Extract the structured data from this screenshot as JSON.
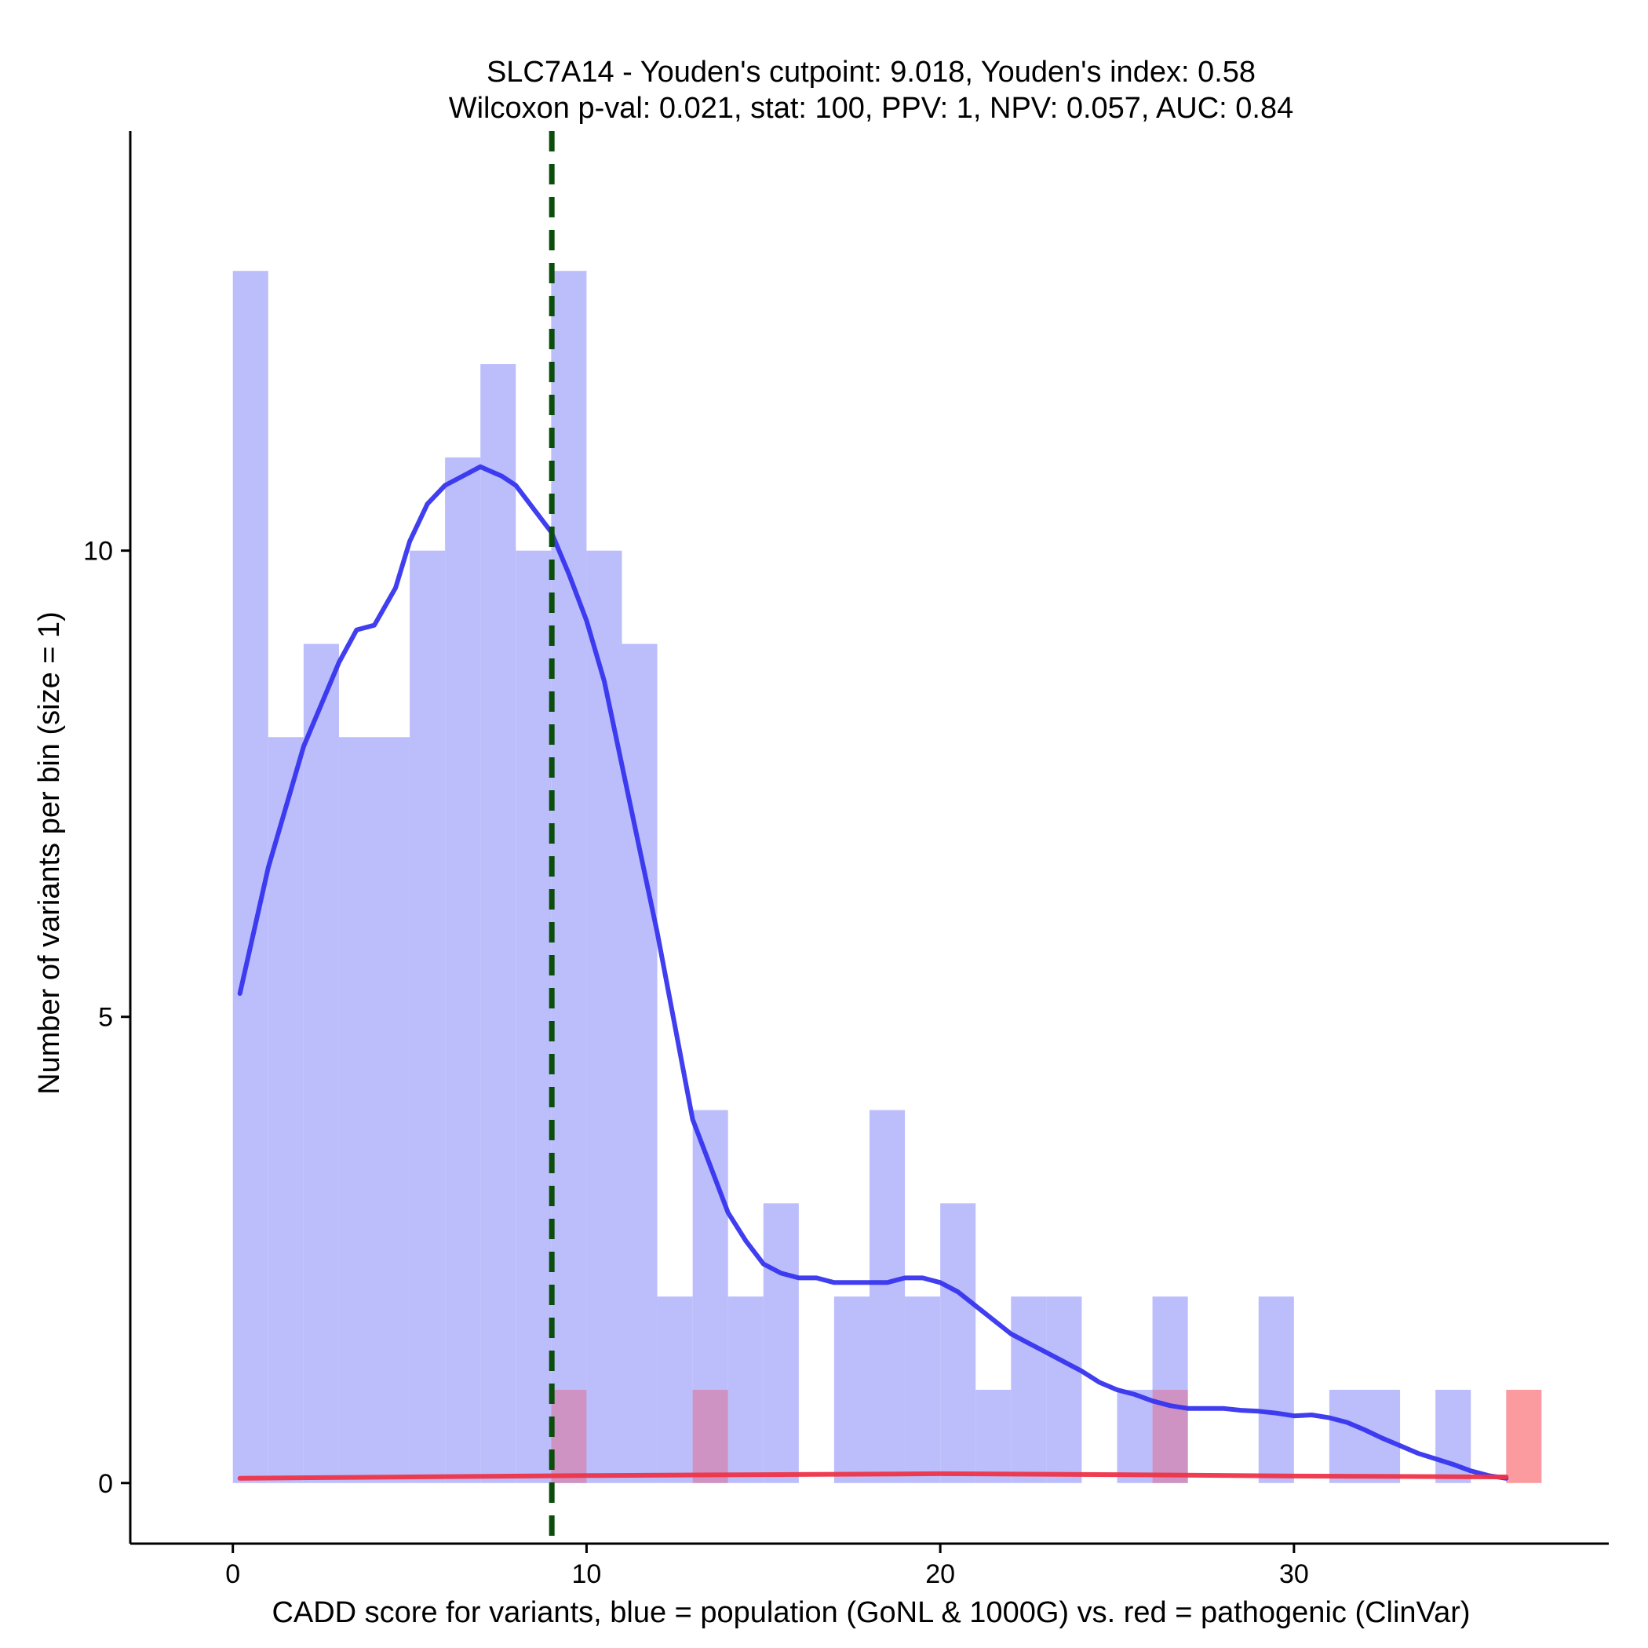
{
  "chart_data": {
    "type": "bar",
    "title": "SLC7A14 - Youden's cutpoint: 9.018, Youden's index: 0.58",
    "subtitle": "Wilcoxon p-val: 0.021, stat: 100, PPV: 1, NPV: 0.057, AUC: 0.84",
    "xlabel": "CADD score for variants, blue = population (GoNL & 1000G) vs. red = pathogenic (ClinVar)",
    "ylabel": "Number of variants per bin (size = 1)",
    "xlim": [
      -2.9,
      38.9
    ],
    "ylim": [
      -0.65,
      14.5
    ],
    "x_ticks": [
      0,
      10,
      20,
      30
    ],
    "x_tick_labels": [
      "0",
      "10",
      "20",
      "30"
    ],
    "y_ticks": [
      0,
      5,
      10
    ],
    "y_tick_labels": [
      "0",
      "5",
      "10"
    ],
    "cutpoint": 9.018,
    "colors": {
      "population_bars": "#bcbdfb",
      "pathogenic_bars": "#fc9b9f",
      "overlap_bars": "#cf93c3",
      "population_density": "#3634ee",
      "pathogenic_density": "#ee3448",
      "cutpoint_line": "#0b4d0b"
    },
    "series": [
      {
        "name": "population (GoNL & 1000G)",
        "bin_starts": [
          0,
          1,
          2,
          3,
          4,
          5,
          6,
          7,
          8,
          9,
          10,
          11,
          12,
          13,
          14,
          15,
          16,
          17,
          18,
          19,
          20,
          21,
          22,
          23,
          24,
          25,
          26,
          27,
          28,
          29,
          30,
          31,
          32,
          33,
          34,
          35
        ],
        "values": [
          13,
          8,
          9,
          8,
          8,
          10,
          11,
          12,
          10,
          13,
          10,
          9,
          2,
          4,
          2,
          3,
          0,
          2,
          4,
          2,
          3,
          1,
          2,
          2,
          0,
          1,
          2,
          0,
          0,
          2,
          0,
          1,
          1,
          0,
          1,
          0
        ]
      },
      {
        "name": "pathogenic (ClinVar)",
        "bin_starts": [
          9,
          13,
          26,
          36
        ],
        "values": [
          1,
          1,
          1,
          1
        ]
      }
    ],
    "density": [
      {
        "name": "population (GoNL & 1000G)",
        "x": [
          0.2,
          1,
          2,
          3,
          3.5,
          4,
          4.6,
          5,
          5.5,
          6,
          6.5,
          7,
          7.3,
          7.6,
          8,
          8.5,
          9,
          9.5,
          10,
          10.5,
          11,
          11.5,
          12,
          12.5,
          13,
          13.5,
          14,
          14.5,
          15,
          15.5,
          16,
          16.5,
          17,
          17.5,
          18,
          18.5,
          19,
          19.5,
          20,
          20.5,
          21,
          21.5,
          22,
          22.5,
          23,
          23.5,
          24,
          24.5,
          25,
          25.5,
          26,
          26.5,
          27,
          27.5,
          28,
          28.5,
          29,
          29.5,
          30,
          30.5,
          31,
          31.5,
          32,
          32.5,
          33,
          33.5,
          34,
          34.5,
          35,
          35.5,
          36
        ],
        "y": [
          5.25,
          6.6,
          7.9,
          8.8,
          9.15,
          9.2,
          9.6,
          10.1,
          10.5,
          10.7,
          10.8,
          10.9,
          10.85,
          10.8,
          10.7,
          10.45,
          10.2,
          9.75,
          9.25,
          8.6,
          7.7,
          6.8,
          5.9,
          4.9,
          3.9,
          3.4,
          2.9,
          2.6,
          2.35,
          2.25,
          2.2,
          2.2,
          2.15,
          2.15,
          2.15,
          2.15,
          2.2,
          2.2,
          2.15,
          2.05,
          1.9,
          1.75,
          1.6,
          1.5,
          1.4,
          1.3,
          1.2,
          1.08,
          1.0,
          0.95,
          0.88,
          0.83,
          0.8,
          0.8,
          0.8,
          0.78,
          0.77,
          0.75,
          0.72,
          0.73,
          0.7,
          0.65,
          0.57,
          0.48,
          0.4,
          0.32,
          0.26,
          0.2,
          0.13,
          0.08,
          0.05
        ]
      },
      {
        "name": "pathogenic (ClinVar)",
        "x": [
          0.2,
          5,
          10,
          15,
          20,
          25,
          30,
          36
        ],
        "y": [
          0.05,
          0.065,
          0.08,
          0.09,
          0.1,
          0.09,
          0.075,
          0.065
        ]
      }
    ]
  }
}
